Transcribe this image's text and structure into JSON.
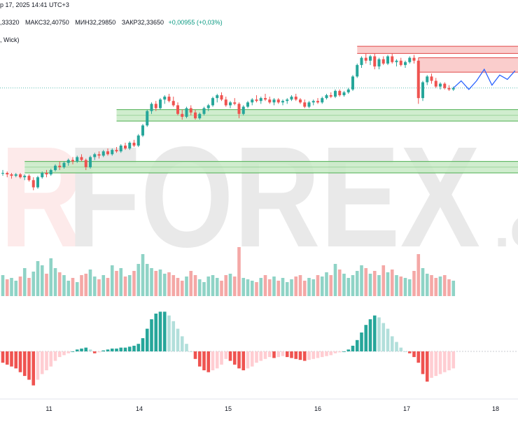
{
  "header": {
    "date_line": "р 17, 2025 14:41 UTC+3",
    "open_partial": ",33320",
    "high": "МАКС32,40750",
    "low": "МИН32,29850",
    "close": "ЗАКР32,33650",
    "change": "+0,00955 (+0,03%)",
    "indicator_label": ", Wick)"
  },
  "watermark": {
    "text": "RFOREX",
    "suffix": ".c",
    "color": "#e9e9e9"
  },
  "colors": {
    "up": "#26a69a",
    "down": "#ef5350",
    "up_vol": "#8fd3c6",
    "down_vol": "#f4a8a6",
    "demand_fill": "#c8eac6",
    "demand_line": "#4caf50",
    "supply_fill": "#f9c8c6",
    "supply_line": "#e04848",
    "forecast": "#2962ff",
    "hist_up_strong": "#26a69a",
    "hist_up_weak": "#b2dfdb",
    "hist_down_strong": "#ef5350",
    "hist_down_weak": "#ffcdd2"
  },
  "chart_data": {
    "type": "candlestick",
    "title": "",
    "x_tick_labels": [
      "11",
      "14",
      "15",
      "16",
      "17",
      "18"
    ],
    "price_range_note": "no price axis visible",
    "candles": [
      [
        31.72,
        31.74,
        31.7,
        31.72
      ],
      [
        31.72,
        31.73,
        31.69,
        31.71
      ],
      [
        31.71,
        31.72,
        31.68,
        31.7
      ],
      [
        31.7,
        31.72,
        31.69,
        31.71
      ],
      [
        31.71,
        31.72,
        31.68,
        31.69
      ],
      [
        31.69,
        31.71,
        31.67,
        31.7
      ],
      [
        31.7,
        31.71,
        31.66,
        31.67
      ],
      [
        31.67,
        31.69,
        31.6,
        31.62
      ],
      [
        31.62,
        31.7,
        31.61,
        31.69
      ],
      [
        31.69,
        31.73,
        31.68,
        31.72
      ],
      [
        31.72,
        31.74,
        31.69,
        31.71
      ],
      [
        31.71,
        31.75,
        31.7,
        31.74
      ],
      [
        31.74,
        31.78,
        31.73,
        31.77
      ],
      [
        31.77,
        31.8,
        31.74,
        31.76
      ],
      [
        31.76,
        31.8,
        31.75,
        31.79
      ],
      [
        31.79,
        31.82,
        31.77,
        31.81
      ],
      [
        31.81,
        31.83,
        31.78,
        31.8
      ],
      [
        31.8,
        31.84,
        31.79,
        31.83
      ],
      [
        31.83,
        31.85,
        31.8,
        31.81
      ],
      [
        31.81,
        31.82,
        31.74,
        31.76
      ],
      [
        31.76,
        31.84,
        31.75,
        31.83
      ],
      [
        31.83,
        31.86,
        31.81,
        31.85
      ],
      [
        31.85,
        31.87,
        31.82,
        31.84
      ],
      [
        31.84,
        31.88,
        31.83,
        31.87
      ],
      [
        31.87,
        31.89,
        31.84,
        31.85
      ],
      [
        31.85,
        31.89,
        31.84,
        31.88
      ],
      [
        31.88,
        31.9,
        31.86,
        31.87
      ],
      [
        31.87,
        31.92,
        31.86,
        31.91
      ],
      [
        31.91,
        31.93,
        31.88,
        31.89
      ],
      [
        31.89,
        31.94,
        31.88,
        31.93
      ],
      [
        31.93,
        31.95,
        31.9,
        31.91
      ],
      [
        31.91,
        31.99,
        31.9,
        31.98
      ],
      [
        31.98,
        32.06,
        31.97,
        32.05
      ],
      [
        32.05,
        32.16,
        32.04,
        32.15
      ],
      [
        32.15,
        32.21,
        32.13,
        32.2
      ],
      [
        32.2,
        32.22,
        32.15,
        32.17
      ],
      [
        32.17,
        32.24,
        32.16,
        32.23
      ],
      [
        32.23,
        32.26,
        32.2,
        32.25
      ],
      [
        32.25,
        32.27,
        32.21,
        32.22
      ],
      [
        32.22,
        32.25,
        32.18,
        32.19
      ],
      [
        32.19,
        32.21,
        32.12,
        32.13
      ],
      [
        32.13,
        32.16,
        32.09,
        32.11
      ],
      [
        32.11,
        32.18,
        32.1,
        32.17
      ],
      [
        32.17,
        32.19,
        32.12,
        32.14
      ],
      [
        32.14,
        32.16,
        32.09,
        32.1
      ],
      [
        32.1,
        32.14,
        32.09,
        32.13
      ],
      [
        32.13,
        32.18,
        32.12,
        32.17
      ],
      [
        32.17,
        32.2,
        32.15,
        32.19
      ],
      [
        32.19,
        32.25,
        32.18,
        32.24
      ],
      [
        32.24,
        32.27,
        32.21,
        32.26
      ],
      [
        32.26,
        32.28,
        32.22,
        32.23
      ],
      [
        32.23,
        32.25,
        32.18,
        32.19
      ],
      [
        32.19,
        32.22,
        32.17,
        32.21
      ],
      [
        32.21,
        32.24,
        32.19,
        32.2
      ],
      [
        32.2,
        32.21,
        32.1,
        32.13
      ],
      [
        32.13,
        32.19,
        32.12,
        32.18
      ],
      [
        32.18,
        32.22,
        32.17,
        32.21
      ],
      [
        32.21,
        32.24,
        32.19,
        32.23
      ],
      [
        32.23,
        32.26,
        32.21,
        32.22
      ],
      [
        32.22,
        32.25,
        32.2,
        32.24
      ],
      [
        32.24,
        32.27,
        32.22,
        32.23
      ],
      [
        32.23,
        32.25,
        32.2,
        32.21
      ],
      [
        32.21,
        32.24,
        32.19,
        32.23
      ],
      [
        32.23,
        32.24,
        32.2,
        32.21
      ],
      [
        32.21,
        32.23,
        32.19,
        32.22
      ],
      [
        32.22,
        32.24,
        32.2,
        32.23
      ],
      [
        32.23,
        32.26,
        32.22,
        32.25
      ],
      [
        32.25,
        32.27,
        32.22,
        32.23
      ],
      [
        32.23,
        32.24,
        32.2,
        32.21
      ],
      [
        32.21,
        32.23,
        32.17,
        32.18
      ],
      [
        32.18,
        32.22,
        32.17,
        32.21
      ],
      [
        32.21,
        32.23,
        32.19,
        32.22
      ],
      [
        32.22,
        32.24,
        32.2,
        32.21
      ],
      [
        32.21,
        32.25,
        32.2,
        32.24
      ],
      [
        32.24,
        32.27,
        32.23,
        32.26
      ],
      [
        32.26,
        32.28,
        32.24,
        32.25
      ],
      [
        32.25,
        32.3,
        32.24,
        32.29
      ],
      [
        32.29,
        32.3,
        32.25,
        32.26
      ],
      [
        32.26,
        32.29,
        32.25,
        32.28
      ],
      [
        32.28,
        32.31,
        32.27,
        32.3
      ],
      [
        32.3,
        32.4,
        32.29,
        32.39
      ],
      [
        32.39,
        32.48,
        32.38,
        32.47
      ],
      [
        32.47,
        32.53,
        32.45,
        32.52
      ],
      [
        32.52,
        32.55,
        32.48,
        32.5
      ],
      [
        32.5,
        32.54,
        32.47,
        32.53
      ],
      [
        32.53,
        32.55,
        32.44,
        32.46
      ],
      [
        32.46,
        32.52,
        32.44,
        32.51
      ],
      [
        32.51,
        32.53,
        32.47,
        32.48
      ],
      [
        32.48,
        32.54,
        32.47,
        32.53
      ],
      [
        32.53,
        32.55,
        32.48,
        32.49
      ],
      [
        32.49,
        32.51,
        32.46,
        32.5
      ],
      [
        32.5,
        32.52,
        32.46,
        32.47
      ],
      [
        32.47,
        32.5,
        32.45,
        32.49
      ],
      [
        32.49,
        32.53,
        32.48,
        32.52
      ],
      [
        32.52,
        32.54,
        32.48,
        32.5
      ],
      [
        32.5,
        32.52,
        32.2,
        32.24
      ],
      [
        32.24,
        32.36,
        32.22,
        32.35
      ],
      [
        32.35,
        32.4,
        32.33,
        32.39
      ],
      [
        32.39,
        32.41,
        32.34,
        32.36
      ],
      [
        32.36,
        32.38,
        32.31,
        32.32
      ],
      [
        32.32,
        32.35,
        32.3,
        32.34
      ],
      [
        32.34,
        32.35,
        32.3,
        32.31
      ],
      [
        32.31,
        32.33,
        32.29,
        32.3
      ],
      [
        32.3,
        32.32,
        32.29,
        32.31
      ]
    ],
    "volume": [
      30,
      24,
      26,
      22,
      28,
      40,
      26,
      35,
      50,
      44,
      32,
      54,
      40,
      34,
      30,
      22,
      26,
      20,
      30,
      32,
      38,
      28,
      24,
      30,
      26,
      44,
      36,
      40,
      28,
      30,
      36,
      46,
      60,
      46,
      40,
      36,
      38,
      32,
      34,
      30,
      26,
      22,
      28,
      36,
      30,
      24,
      20,
      28,
      30,
      26,
      22,
      30,
      32,
      28,
      70,
      26,
      24,
      22,
      20,
      26,
      30,
      24,
      28,
      22,
      26,
      20,
      24,
      28,
      30,
      22,
      26,
      24,
      30,
      28,
      34,
      30,
      46,
      38,
      32,
      26,
      30,
      36,
      44,
      40,
      32,
      36,
      30,
      44,
      34,
      38,
      30,
      28,
      26,
      24,
      36,
      60,
      40,
      32,
      30,
      26,
      28,
      30,
      24,
      22
    ],
    "volume_up": [
      1,
      0,
      1,
      1,
      0,
      1,
      0,
      1,
      1,
      1,
      0,
      1,
      1,
      0,
      1,
      1,
      0,
      1,
      0,
      0,
      1,
      1,
      0,
      1,
      0,
      1,
      0,
      1,
      0,
      1,
      0,
      1,
      1,
      1,
      1,
      0,
      1,
      1,
      0,
      0,
      0,
      0,
      1,
      0,
      0,
      1,
      1,
      1,
      1,
      1,
      0,
      0,
      1,
      0,
      0,
      1,
      1,
      1,
      0,
      1,
      0,
      0,
      1,
      0,
      1,
      1,
      1,
      0,
      0,
      0,
      1,
      1,
      0,
      1,
      1,
      0,
      1,
      0,
      1,
      1,
      1,
      1,
      1,
      0,
      1,
      0,
      1,
      0,
      1,
      0,
      1,
      0,
      1,
      1,
      0,
      0,
      1,
      1,
      0,
      0,
      1,
      0,
      0,
      1
    ],
    "oscillator": [
      -0.6,
      -0.7,
      -0.8,
      -0.9,
      -1.1,
      -1.3,
      -1.5,
      -1.8,
      -1.5,
      -1.2,
      -1.0,
      -0.8,
      -0.5,
      -0.3,
      -0.2,
      -0.1,
      0.0,
      0.1,
      0.15,
      0.2,
      0.1,
      -0.1,
      -0.05,
      0.05,
      0.1,
      0.15,
      0.15,
      0.2,
      0.2,
      0.25,
      0.3,
      0.4,
      0.7,
      1.2,
      1.7,
      2.0,
      2.1,
      2.1,
      1.9,
      1.6,
      1.2,
      0.8,
      0.4,
      0.0,
      -0.4,
      -0.8,
      -1.0,
      -1.1,
      -1.0,
      -0.9,
      -0.7,
      -0.4,
      -0.5,
      -0.7,
      -0.9,
      -1.0,
      -0.9,
      -0.8,
      -0.6,
      -0.5,
      -0.4,
      -0.3,
      -0.35,
      -0.3,
      -0.25,
      -0.3,
      -0.35,
      -0.4,
      -0.45,
      -0.5,
      -0.45,
      -0.4,
      -0.35,
      -0.3,
      -0.25,
      -0.2,
      -0.1,
      -0.05,
      0.0,
      0.1,
      0.3,
      0.6,
      1.0,
      1.4,
      1.7,
      1.9,
      1.8,
      1.5,
      1.2,
      0.8,
      0.5,
      0.2,
      0.0,
      -0.1,
      -0.3,
      -0.6,
      -1.2,
      -1.6,
      -1.4,
      -1.3,
      -1.2,
      -1.1,
      -1.0,
      -0.9
    ],
    "demand_zones": [
      [
        32.08,
        32.16
      ],
      [
        31.72,
        31.8
      ]
    ],
    "supply_zones": [
      [
        32.55,
        32.6
      ],
      [
        32.42,
        32.52
      ]
    ],
    "forecast": [
      32.31,
      32.36,
      32.3,
      32.36,
      32.44,
      32.33,
      32.4,
      32.37,
      32.43
    ]
  }
}
